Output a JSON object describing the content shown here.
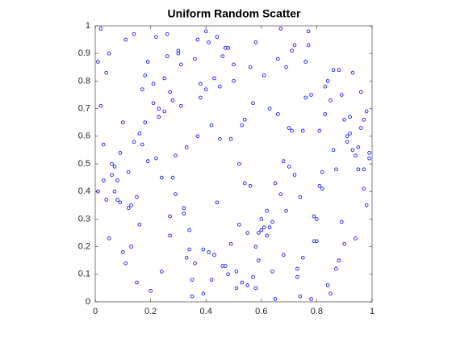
{
  "chart_data": {
    "type": "scatter",
    "title": "Uniform Random Scatter",
    "color": "#0000ff",
    "xlim": [
      0,
      1
    ],
    "ylim": [
      0,
      1
    ],
    "xticks": [
      0,
      0.2,
      0.4,
      0.6,
      0.8,
      1
    ],
    "yticks": [
      0,
      0.1,
      0.2,
      0.3,
      0.4,
      0.5,
      0.6,
      0.7,
      0.8,
      0.9,
      1
    ],
    "x": [
      0.12,
      0.87,
      0.45,
      0.33,
      0.71,
      0.05,
      0.92,
      0.58,
      0.24,
      0.66,
      0.39,
      0.81,
      0.14,
      0.97,
      0.52,
      0.28,
      0.73,
      0.09,
      0.61,
      0.44,
      0.18,
      0.95,
      0.36,
      0.77,
      0.02,
      0.63,
      0.49,
      0.85,
      0.31,
      0.56,
      0.68,
      0.21,
      0.99,
      0.42,
      0.11,
      0.79,
      0.54,
      0.27,
      0.89,
      0.07,
      0.47,
      0.74,
      0.16,
      0.59,
      0.93,
      0.35,
      0.82,
      0.23,
      0.64,
      0.03,
      0.51,
      0.88,
      0.29,
      0.7,
      0.13,
      0.96,
      0.4,
      0.62,
      0.19,
      0.84,
      0.57,
      0.08,
      0.76,
      0.34,
      0.91,
      0.46,
      0.25,
      0.67,
      0.01,
      0.8,
      0.43,
      0.15,
      0.98,
      0.53,
      0.3,
      0.72,
      0.1,
      0.86,
      0.38,
      0.6,
      0.22,
      0.94,
      0.48,
      0.69,
      0.04,
      0.83,
      0.55,
      0.26,
      0.78,
      0.37,
      0.65,
      0.17,
      0.9,
      0.41,
      0.06,
      0.75,
      0.5,
      0.32,
      0.97,
      0.2,
      0.14,
      0.61,
      0.85,
      0.28,
      0.73,
      0.46,
      0.09,
      0.92,
      0.35,
      0.58,
      0.79,
      0.23,
      0.52,
      0.04,
      0.67,
      0.88,
      0.31,
      0.44,
      0.16,
      0.99,
      0.56,
      0.39,
      0.71,
      0.12,
      0.83,
      0.27,
      0.64,
      0.48,
      0.95,
      0.07,
      0.34,
      0.76,
      0.19,
      0.59,
      0.42,
      0.87,
      0.02,
      0.69,
      0.53,
      0.25,
      0.81,
      0.45,
      0.11,
      0.63,
      0.37,
      0.94,
      0.22,
      0.74,
      0.5,
      0.08,
      0.66,
      0.3,
      0.89,
      0.17,
      0.55,
      0.03,
      0.78,
      0.41,
      0.96,
      0.26,
      0.47,
      0.84,
      0.13,
      0.7,
      0.36,
      0.6,
      0.91,
      0.21,
      0.57,
      0.06,
      0.72,
      0.33,
      0.98,
      0.15,
      0.49,
      0.86,
      0.29,
      0.65,
      0.4,
      0.8,
      0.1,
      0.54,
      0.77,
      0.24,
      0.93,
      0.38,
      0.62,
      0.05,
      0.82,
      0.43,
      0.68,
      0.18,
      0.51,
      0.9,
      0.32,
      0.75,
      0.01,
      0.58,
      0.27,
      0.97
    ],
    "values": [
      0.34,
      0.12,
      0.78,
      0.56,
      0.91,
      0.23,
      0.67,
      0.05,
      0.45,
      0.88,
      0.19,
      0.62,
      0.97,
      0.41,
      0.28,
      0.73,
      0.09,
      0.54,
      0.82,
      0.36,
      0.65,
      0.48,
      0.14,
      0.93,
      0.71,
      0.27,
      0.59,
      0.03,
      0.86,
      0.42,
      0.17,
      0.79,
      0.52,
      0.08,
      0.95,
      0.31,
      0.66,
      0.24,
      0.75,
      0.49,
      0.92,
      0.38,
      0.61,
      0.15,
      0.83,
      0.02,
      0.47,
      0.7,
      0.29,
      0.57,
      0.11,
      0.84,
      0.39,
      0.63,
      0.2,
      0.76,
      0.98,
      0.33,
      0.51,
      0.06,
      0.72,
      0.44,
      0.87,
      0.26,
      0.58,
      0.13,
      0.69,
      0.99,
      0.4,
      0.22,
      0.81,
      0.07,
      0.35,
      0.64,
      0.9,
      0.46,
      0.18,
      0.55,
      0.74,
      0.3,
      0.96,
      0.53,
      0.1,
      0.85,
      0.37,
      0.68,
      0.25,
      0.89,
      0.01,
      0.6,
      0.43,
      0.77,
      0.21,
      0.94,
      0.5,
      0.16,
      0.8,
      0.32,
      0.66,
      0.04,
      0.58,
      0.27,
      0.73,
      0.45,
      0.12,
      0.89,
      0.36,
      0.61,
      0.08,
      0.94,
      0.22,
      0.67,
      0.5,
      0.83,
      0.39,
      0.15,
      0.71,
      0.96,
      0.28,
      0.54,
      0.85,
      0.03,
      0.62,
      0.47,
      0.78,
      0.31,
      0.11,
      0.92,
      0.56,
      0.4,
      0.19,
      0.74,
      0.87,
      0.25,
      0.64,
      0.48,
      0.99,
      0.33,
      0.07,
      0.81,
      0.42,
      0.59,
      0.14,
      0.7,
      0.95,
      0.23,
      0.52,
      0.02,
      0.86,
      0.37,
      0.68,
      0.91,
      0.29,
      0.57,
      0.06,
      0.44,
      0.75,
      0.18,
      0.63,
      0.97,
      0.13,
      0.8,
      0.35,
      0.49,
      0.88,
      0.26,
      0.6,
      0.72,
      0.09,
      0.46,
      0.93,
      0.16,
      0.69,
      0.38,
      0.21,
      0.84,
      0.53,
      0.01,
      0.77,
      0.3,
      0.65,
      0.43,
      0.98,
      0.11,
      0.55,
      0.79,
      0.24,
      0.9,
      0.41,
      0.17,
      0.51,
      0.82,
      0.05,
      0.66,
      0.34,
      0.62,
      0.87,
      0.2,
      0.76,
      0.48
    ]
  }
}
